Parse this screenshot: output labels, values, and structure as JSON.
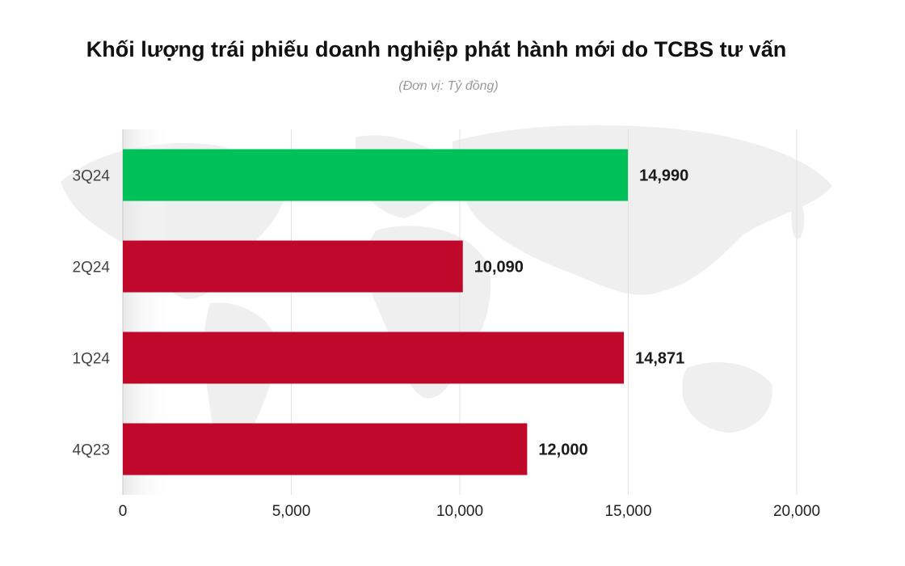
{
  "chart_data": {
    "type": "bar",
    "orientation": "horizontal",
    "title": "Khối lượng trái phiếu doanh nghiệp phát hành mới do TCBS tư vấn",
    "subtitle": "(Đơn vị: Tỷ đồng)",
    "categories": [
      "3Q24",
      "2Q24",
      "1Q24",
      "4Q23"
    ],
    "values": [
      14990,
      10090,
      14871,
      12000
    ],
    "value_labels": [
      "14,990",
      "10,090",
      "14,871",
      "12,000"
    ],
    "bar_colors": [
      "#00c05a",
      "#c0092a",
      "#c0092a",
      "#c0092a"
    ],
    "xlim": [
      0,
      20000
    ],
    "xticks": [
      0,
      5000,
      10000,
      15000,
      20000
    ],
    "xtick_labels": [
      "0",
      "5,000",
      "10,000",
      "15,000",
      "20,000"
    ],
    "grid": true,
    "background": "faint world map"
  }
}
